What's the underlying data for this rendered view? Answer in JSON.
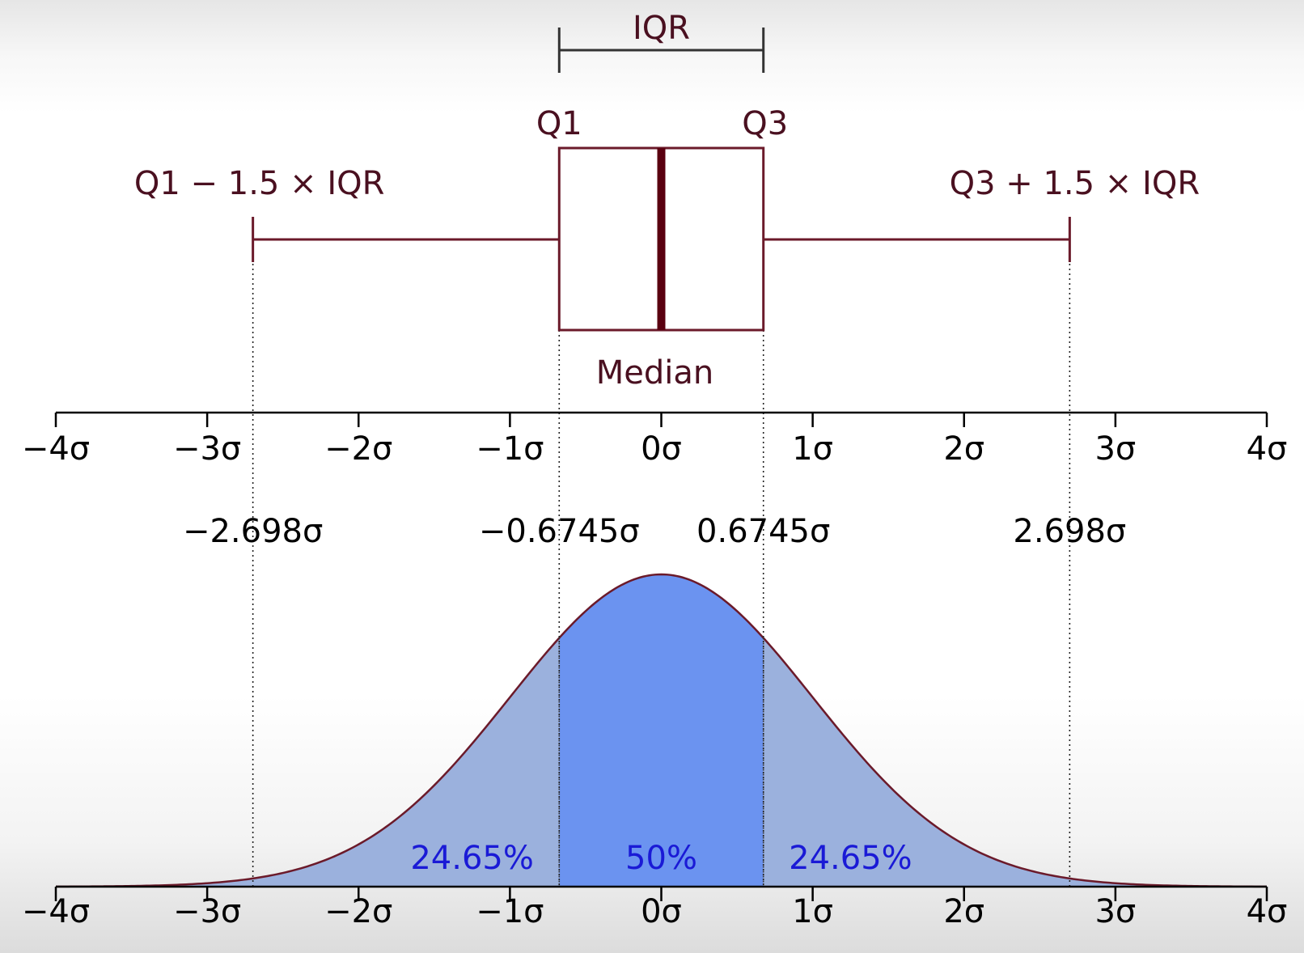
{
  "chart_data": {
    "type": "diagram",
    "x_range": [
      -4,
      4
    ],
    "box_plot": {
      "q1": -0.6745,
      "median": 0,
      "q3": 0.6745,
      "whisker_low": -2.698,
      "whisker_high": 2.698,
      "labels": {
        "iqr": "IQR",
        "q1": "Q1",
        "q3": "Q3",
        "lower_fence": "Q1 − 1.5 × IQR",
        "upper_fence": "Q3 + 1.5 × IQR",
        "median": "Median"
      }
    },
    "normal_curve": {
      "mean": 0,
      "sd": 1,
      "regions": [
        {
          "from": -2.698,
          "to": -0.6745,
          "label": "24.65%"
        },
        {
          "from": -0.6745,
          "to": 0.6745,
          "label": "50%"
        },
        {
          "from": 0.6745,
          "to": 2.698,
          "label": "24.65%"
        }
      ]
    },
    "axis_ticks": [
      {
        "value": -4,
        "label": "−4σ"
      },
      {
        "value": -3,
        "label": "−3σ"
      },
      {
        "value": -2,
        "label": "−2σ"
      },
      {
        "value": -1,
        "label": "−1σ"
      },
      {
        "value": 0,
        "label": "0σ"
      },
      {
        "value": 1,
        "label": "1σ"
      },
      {
        "value": 2,
        "label": "2σ"
      },
      {
        "value": 3,
        "label": "3σ"
      },
      {
        "value": 4,
        "label": "4σ"
      }
    ],
    "marker_labels": [
      {
        "value": -2.698,
        "label": "−2.698σ"
      },
      {
        "value": -0.6745,
        "label": "−0.6745σ"
      },
      {
        "value": 0.6745,
        "label": "0.6745σ"
      },
      {
        "value": 2.698,
        "label": "2.698σ"
      }
    ],
    "colors": {
      "box": "#6b1a2a",
      "median_line": "#5a0010",
      "label_dark": "#4a1020",
      "tail_fill": "#9bb1dd",
      "center_fill": "#6b93f0",
      "curve": "#6b1a2a",
      "percent_text": "#1a1ad6",
      "axis": "#000000",
      "iqr_bracket": "#333333"
    }
  }
}
